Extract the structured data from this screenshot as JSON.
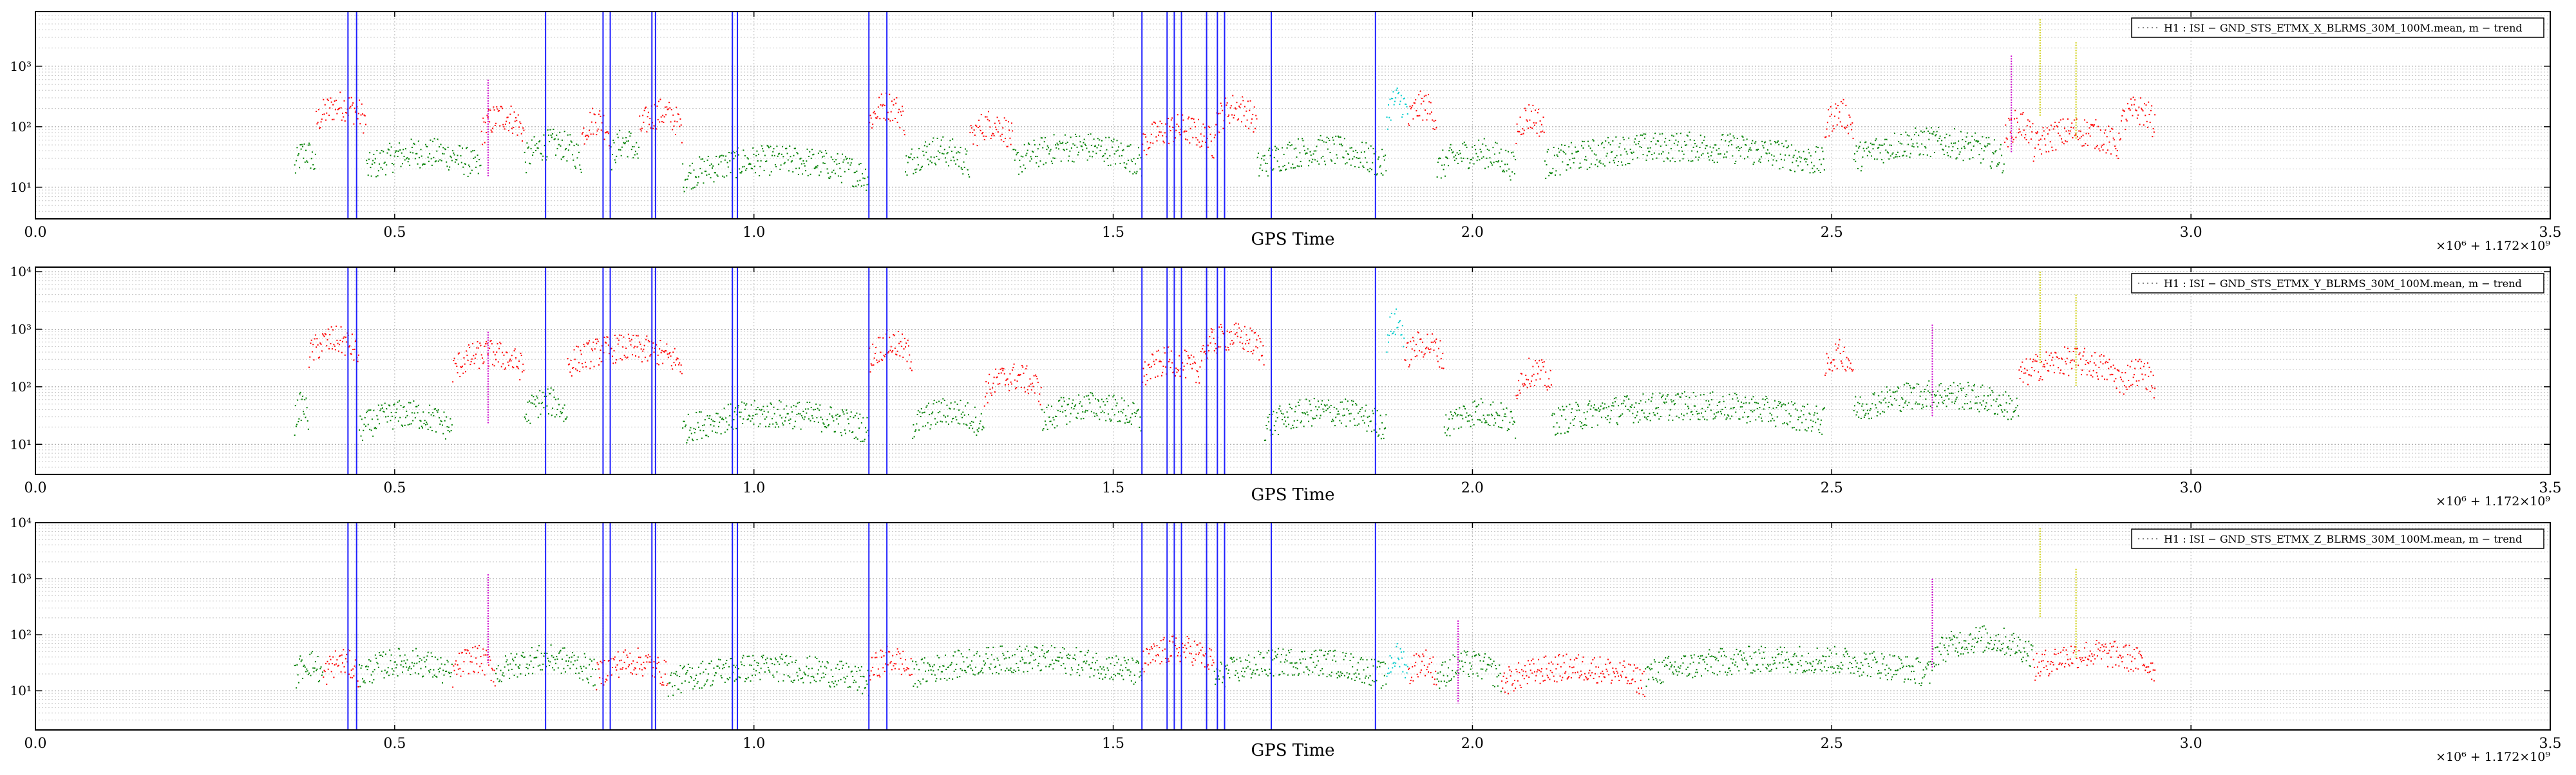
{
  "chart_data": [
    {
      "type": "scatter",
      "title": "",
      "xlabel": "GPS Time",
      "ylabel": "",
      "x_offset_label": "×10⁶ + 1.172×10⁹",
      "xlim": [
        0.0,
        3.5
      ],
      "ylim": [
        3,
        8000
      ],
      "yscale": "log",
      "grid": true,
      "legend": {
        "label": "H1 : ISI − GND_STS_ETMX_X_BLRMS_30M_100M.mean, m − trend",
        "placement": "top-right"
      },
      "x_ticks": [
        "0.0",
        "0.5",
        "1.0",
        "1.5",
        "2.0",
        "2.5",
        "3.0",
        "3.5"
      ],
      "y_ticks": [
        "10¹",
        "10²",
        "10³"
      ],
      "vlines_x": [
        0.435,
        0.447,
        0.71,
        0.79,
        0.8,
        0.858,
        0.863,
        0.97,
        0.977,
        1.16,
        1.185,
        1.54,
        1.575,
        1.585,
        1.595,
        1.63,
        1.645,
        1.655,
        1.72,
        1.865
      ],
      "series_colors": [
        "#ff0000",
        "#008000",
        "#00cccc",
        "#cc00cc",
        "#cccc00",
        "#0000ff",
        "#ff8800"
      ],
      "segments": [
        {
          "x0": 0.36,
          "x1": 0.39,
          "base": 20,
          "color": "#008000"
        },
        {
          "x0": 0.39,
          "x1": 0.46,
          "base": 120,
          "color": "#ff0000"
        },
        {
          "x0": 0.46,
          "x1": 0.62,
          "base": 20,
          "color": "#008000"
        },
        {
          "x0": 0.62,
          "x1": 0.68,
          "base": 80,
          "color": "#ff0000"
        },
        {
          "x0": 0.68,
          "x1": 0.76,
          "base": 28,
          "color": "#008000"
        },
        {
          "x0": 0.76,
          "x1": 0.8,
          "base": 70,
          "color": "#ff0000"
        },
        {
          "x0": 0.8,
          "x1": 0.84,
          "base": 30,
          "color": "#008000"
        },
        {
          "x0": 0.84,
          "x1": 0.9,
          "base": 90,
          "color": "#ff0000"
        },
        {
          "x0": 0.9,
          "x1": 1.16,
          "base": 15,
          "color": "#008000"
        },
        {
          "x0": 1.16,
          "x1": 1.21,
          "base": 120,
          "color": "#ff0000"
        },
        {
          "x0": 1.21,
          "x1": 1.3,
          "base": 22,
          "color": "#008000"
        },
        {
          "x0": 1.3,
          "x1": 1.36,
          "base": 60,
          "color": "#ff0000"
        },
        {
          "x0": 1.36,
          "x1": 1.54,
          "base": 25,
          "color": "#008000"
        },
        {
          "x0": 1.54,
          "x1": 1.64,
          "base": 50,
          "color": "#ff0000"
        },
        {
          "x0": 1.64,
          "x1": 1.7,
          "base": 110,
          "color": "#ff0000"
        },
        {
          "x0": 1.7,
          "x1": 1.88,
          "base": 22,
          "color": "#008000"
        },
        {
          "x0": 1.88,
          "x1": 1.91,
          "base": 150,
          "color": "#00cccc"
        },
        {
          "x0": 1.91,
          "x1": 1.95,
          "base": 120,
          "color": "#ff0000"
        },
        {
          "x0": 1.95,
          "x1": 2.06,
          "base": 20,
          "color": "#008000"
        },
        {
          "x0": 2.06,
          "x1": 2.1,
          "base": 80,
          "color": "#ff0000"
        },
        {
          "x0": 2.1,
          "x1": 2.49,
          "base": 25,
          "color": "#008000"
        },
        {
          "x0": 2.49,
          "x1": 2.53,
          "base": 90,
          "color": "#ff0000"
        },
        {
          "x0": 2.53,
          "x1": 2.74,
          "base": 30,
          "color": "#008000"
        },
        {
          "x0": 2.74,
          "x1": 2.78,
          "base": 60,
          "color": "#ff0000"
        },
        {
          "x0": 2.78,
          "x1": 2.9,
          "base": 45,
          "color": "#ff0000"
        },
        {
          "x0": 2.9,
          "x1": 2.95,
          "base": 100,
          "color": "#ff0000"
        }
      ],
      "spikes": [
        {
          "x": 0.63,
          "top": 600,
          "color": "#cc00cc"
        },
        {
          "x": 2.79,
          "top": 6000,
          "color": "#cccc00"
        },
        {
          "x": 2.84,
          "top": 2500,
          "color": "#cccc00"
        },
        {
          "x": 2.75,
          "top": 1500,
          "color": "#cc00cc"
        }
      ]
    },
    {
      "type": "scatter",
      "title": "",
      "xlabel": "GPS Time",
      "ylabel": "",
      "x_offset_label": "×10⁶ + 1.172×10⁹",
      "xlim": [
        0.0,
        3.5
      ],
      "ylim": [
        3,
        12000
      ],
      "yscale": "log",
      "grid": true,
      "legend": {
        "label": "H1 : ISI − GND_STS_ETMX_Y_BLRMS_30M_100M.mean, m − trend",
        "placement": "top-right"
      },
      "x_ticks": [
        "0.0",
        "0.5",
        "1.0",
        "1.5",
        "2.0",
        "2.5",
        "3.0",
        "3.5"
      ],
      "y_ticks": [
        "10¹",
        "10²",
        "10³",
        "10⁴"
      ],
      "vlines_x": [
        0.435,
        0.447,
        0.71,
        0.79,
        0.8,
        0.858,
        0.863,
        0.97,
        0.977,
        1.16,
        1.185,
        1.54,
        1.575,
        1.585,
        1.595,
        1.63,
        1.645,
        1.655,
        1.72,
        1.865
      ],
      "series_colors": [
        "#ff0000",
        "#008000",
        "#00cccc",
        "#cc00cc",
        "#cccc00",
        "#0000ff",
        "#ff8800"
      ],
      "segments": [
        {
          "x0": 0.36,
          "x1": 0.38,
          "base": 25,
          "color": "#008000"
        },
        {
          "x0": 0.38,
          "x1": 0.45,
          "base": 350,
          "color": "#ff0000"
        },
        {
          "x0": 0.45,
          "x1": 0.58,
          "base": 18,
          "color": "#008000"
        },
        {
          "x0": 0.58,
          "x1": 0.68,
          "base": 200,
          "color": "#ff0000"
        },
        {
          "x0": 0.68,
          "x1": 0.74,
          "base": 30,
          "color": "#008000"
        },
        {
          "x0": 0.74,
          "x1": 0.9,
          "base": 250,
          "color": "#ff0000"
        },
        {
          "x0": 0.9,
          "x1": 1.16,
          "base": 18,
          "color": "#008000"
        },
        {
          "x0": 1.16,
          "x1": 1.22,
          "base": 300,
          "color": "#ff0000"
        },
        {
          "x0": 1.22,
          "x1": 1.32,
          "base": 20,
          "color": "#008000"
        },
        {
          "x0": 1.32,
          "x1": 1.4,
          "base": 80,
          "color": "#ff0000"
        },
        {
          "x0": 1.4,
          "x1": 1.54,
          "base": 25,
          "color": "#008000"
        },
        {
          "x0": 1.54,
          "x1": 1.62,
          "base": 150,
          "color": "#ff0000"
        },
        {
          "x0": 1.62,
          "x1": 1.71,
          "base": 400,
          "color": "#ff0000"
        },
        {
          "x0": 1.71,
          "x1": 1.88,
          "base": 20,
          "color": "#008000"
        },
        {
          "x0": 1.88,
          "x1": 1.905,
          "base": 700,
          "color": "#00cccc"
        },
        {
          "x0": 1.905,
          "x1": 1.96,
          "base": 300,
          "color": "#ff0000"
        },
        {
          "x0": 1.96,
          "x1": 2.06,
          "base": 20,
          "color": "#008000"
        },
        {
          "x0": 2.06,
          "x1": 2.11,
          "base": 100,
          "color": "#ff0000"
        },
        {
          "x0": 2.11,
          "x1": 2.49,
          "base": 25,
          "color": "#008000"
        },
        {
          "x0": 2.49,
          "x1": 2.53,
          "base": 200,
          "color": "#ff0000"
        },
        {
          "x0": 2.53,
          "x1": 2.76,
          "base": 40,
          "color": "#008000"
        },
        {
          "x0": 2.76,
          "x1": 2.9,
          "base": 150,
          "color": "#ff0000"
        },
        {
          "x0": 2.9,
          "x1": 2.95,
          "base": 100,
          "color": "#ff0000"
        }
      ],
      "spikes": [
        {
          "x": 0.63,
          "top": 900,
          "color": "#cc00cc"
        },
        {
          "x": 2.79,
          "top": 10000,
          "color": "#cccc00"
        },
        {
          "x": 2.84,
          "top": 4000,
          "color": "#cccc00"
        },
        {
          "x": 2.64,
          "top": 1200,
          "color": "#cc00cc"
        }
      ]
    },
    {
      "type": "scatter",
      "title": "",
      "xlabel": "GPS Time",
      "ylabel": "",
      "x_offset_label": "×10⁶ + 1.172×10⁹",
      "xlim": [
        0.0,
        3.5
      ],
      "ylim": [
        2,
        10000
      ],
      "yscale": "log",
      "grid": true,
      "legend": {
        "label": "H1 : ISI − GND_STS_ETMX_Z_BLRMS_30M_100M.mean, m − trend",
        "placement": "top-right"
      },
      "x_ticks": [
        "0.0",
        "0.5",
        "1.0",
        "1.5",
        "2.0",
        "2.5",
        "3.0",
        "3.5"
      ],
      "y_ticks": [
        "10¹",
        "10²",
        "10³",
        "10⁴"
      ],
      "vlines_x": [
        0.435,
        0.447,
        0.71,
        0.79,
        0.8,
        0.858,
        0.863,
        0.97,
        0.977,
        1.16,
        1.185,
        1.54,
        1.575,
        1.585,
        1.595,
        1.63,
        1.645,
        1.655,
        1.72,
        1.865
      ],
      "series_colors": [
        "#ff0000",
        "#008000",
        "#00cccc",
        "#cc00cc",
        "#cccc00",
        "#0000ff",
        "#ff8800"
      ],
      "segments": [
        {
          "x0": 0.36,
          "x1": 0.4,
          "base": 17,
          "color": "#008000"
        },
        {
          "x0": 0.4,
          "x1": 0.45,
          "base": 18,
          "color": "#ff0000"
        },
        {
          "x0": 0.45,
          "x1": 0.58,
          "base": 18,
          "color": "#008000"
        },
        {
          "x0": 0.58,
          "x1": 0.64,
          "base": 20,
          "color": "#ff0000"
        },
        {
          "x0": 0.64,
          "x1": 0.78,
          "base": 20,
          "color": "#008000"
        },
        {
          "x0": 0.78,
          "x1": 0.88,
          "base": 18,
          "color": "#ff0000"
        },
        {
          "x0": 0.88,
          "x1": 1.16,
          "base": 14,
          "color": "#008000"
        },
        {
          "x0": 1.16,
          "x1": 1.22,
          "base": 20,
          "color": "#ff0000"
        },
        {
          "x0": 1.22,
          "x1": 1.54,
          "base": 20,
          "color": "#008000"
        },
        {
          "x0": 1.54,
          "x1": 1.64,
          "base": 30,
          "color": "#ff0000"
        },
        {
          "x0": 1.64,
          "x1": 1.88,
          "base": 18,
          "color": "#008000"
        },
        {
          "x0": 1.88,
          "x1": 1.91,
          "base": 22,
          "color": "#00cccc"
        },
        {
          "x0": 1.91,
          "x1": 1.95,
          "base": 18,
          "color": "#ff0000"
        },
        {
          "x0": 1.95,
          "x1": 2.04,
          "base": 16,
          "color": "#008000"
        },
        {
          "x0": 2.04,
          "x1": 2.24,
          "base": 14,
          "color": "#ff0000"
        },
        {
          "x0": 2.24,
          "x1": 2.64,
          "base": 20,
          "color": "#008000"
        },
        {
          "x0": 2.64,
          "x1": 2.78,
          "base": 45,
          "color": "#008000"
        },
        {
          "x0": 2.78,
          "x1": 2.95,
          "base": 25,
          "color": "#ff0000"
        }
      ],
      "spikes": [
        {
          "x": 0.63,
          "top": 1200,
          "color": "#cc00cc"
        },
        {
          "x": 0.79,
          "top": 800,
          "color": "#cc00cc"
        },
        {
          "x": 2.79,
          "top": 8000,
          "color": "#cccc00"
        },
        {
          "x": 2.84,
          "top": 1500,
          "color": "#cccc00"
        },
        {
          "x": 1.98,
          "top": 180,
          "color": "#cc00cc"
        },
        {
          "x": 2.64,
          "top": 1000,
          "color": "#cc00cc"
        }
      ]
    }
  ]
}
